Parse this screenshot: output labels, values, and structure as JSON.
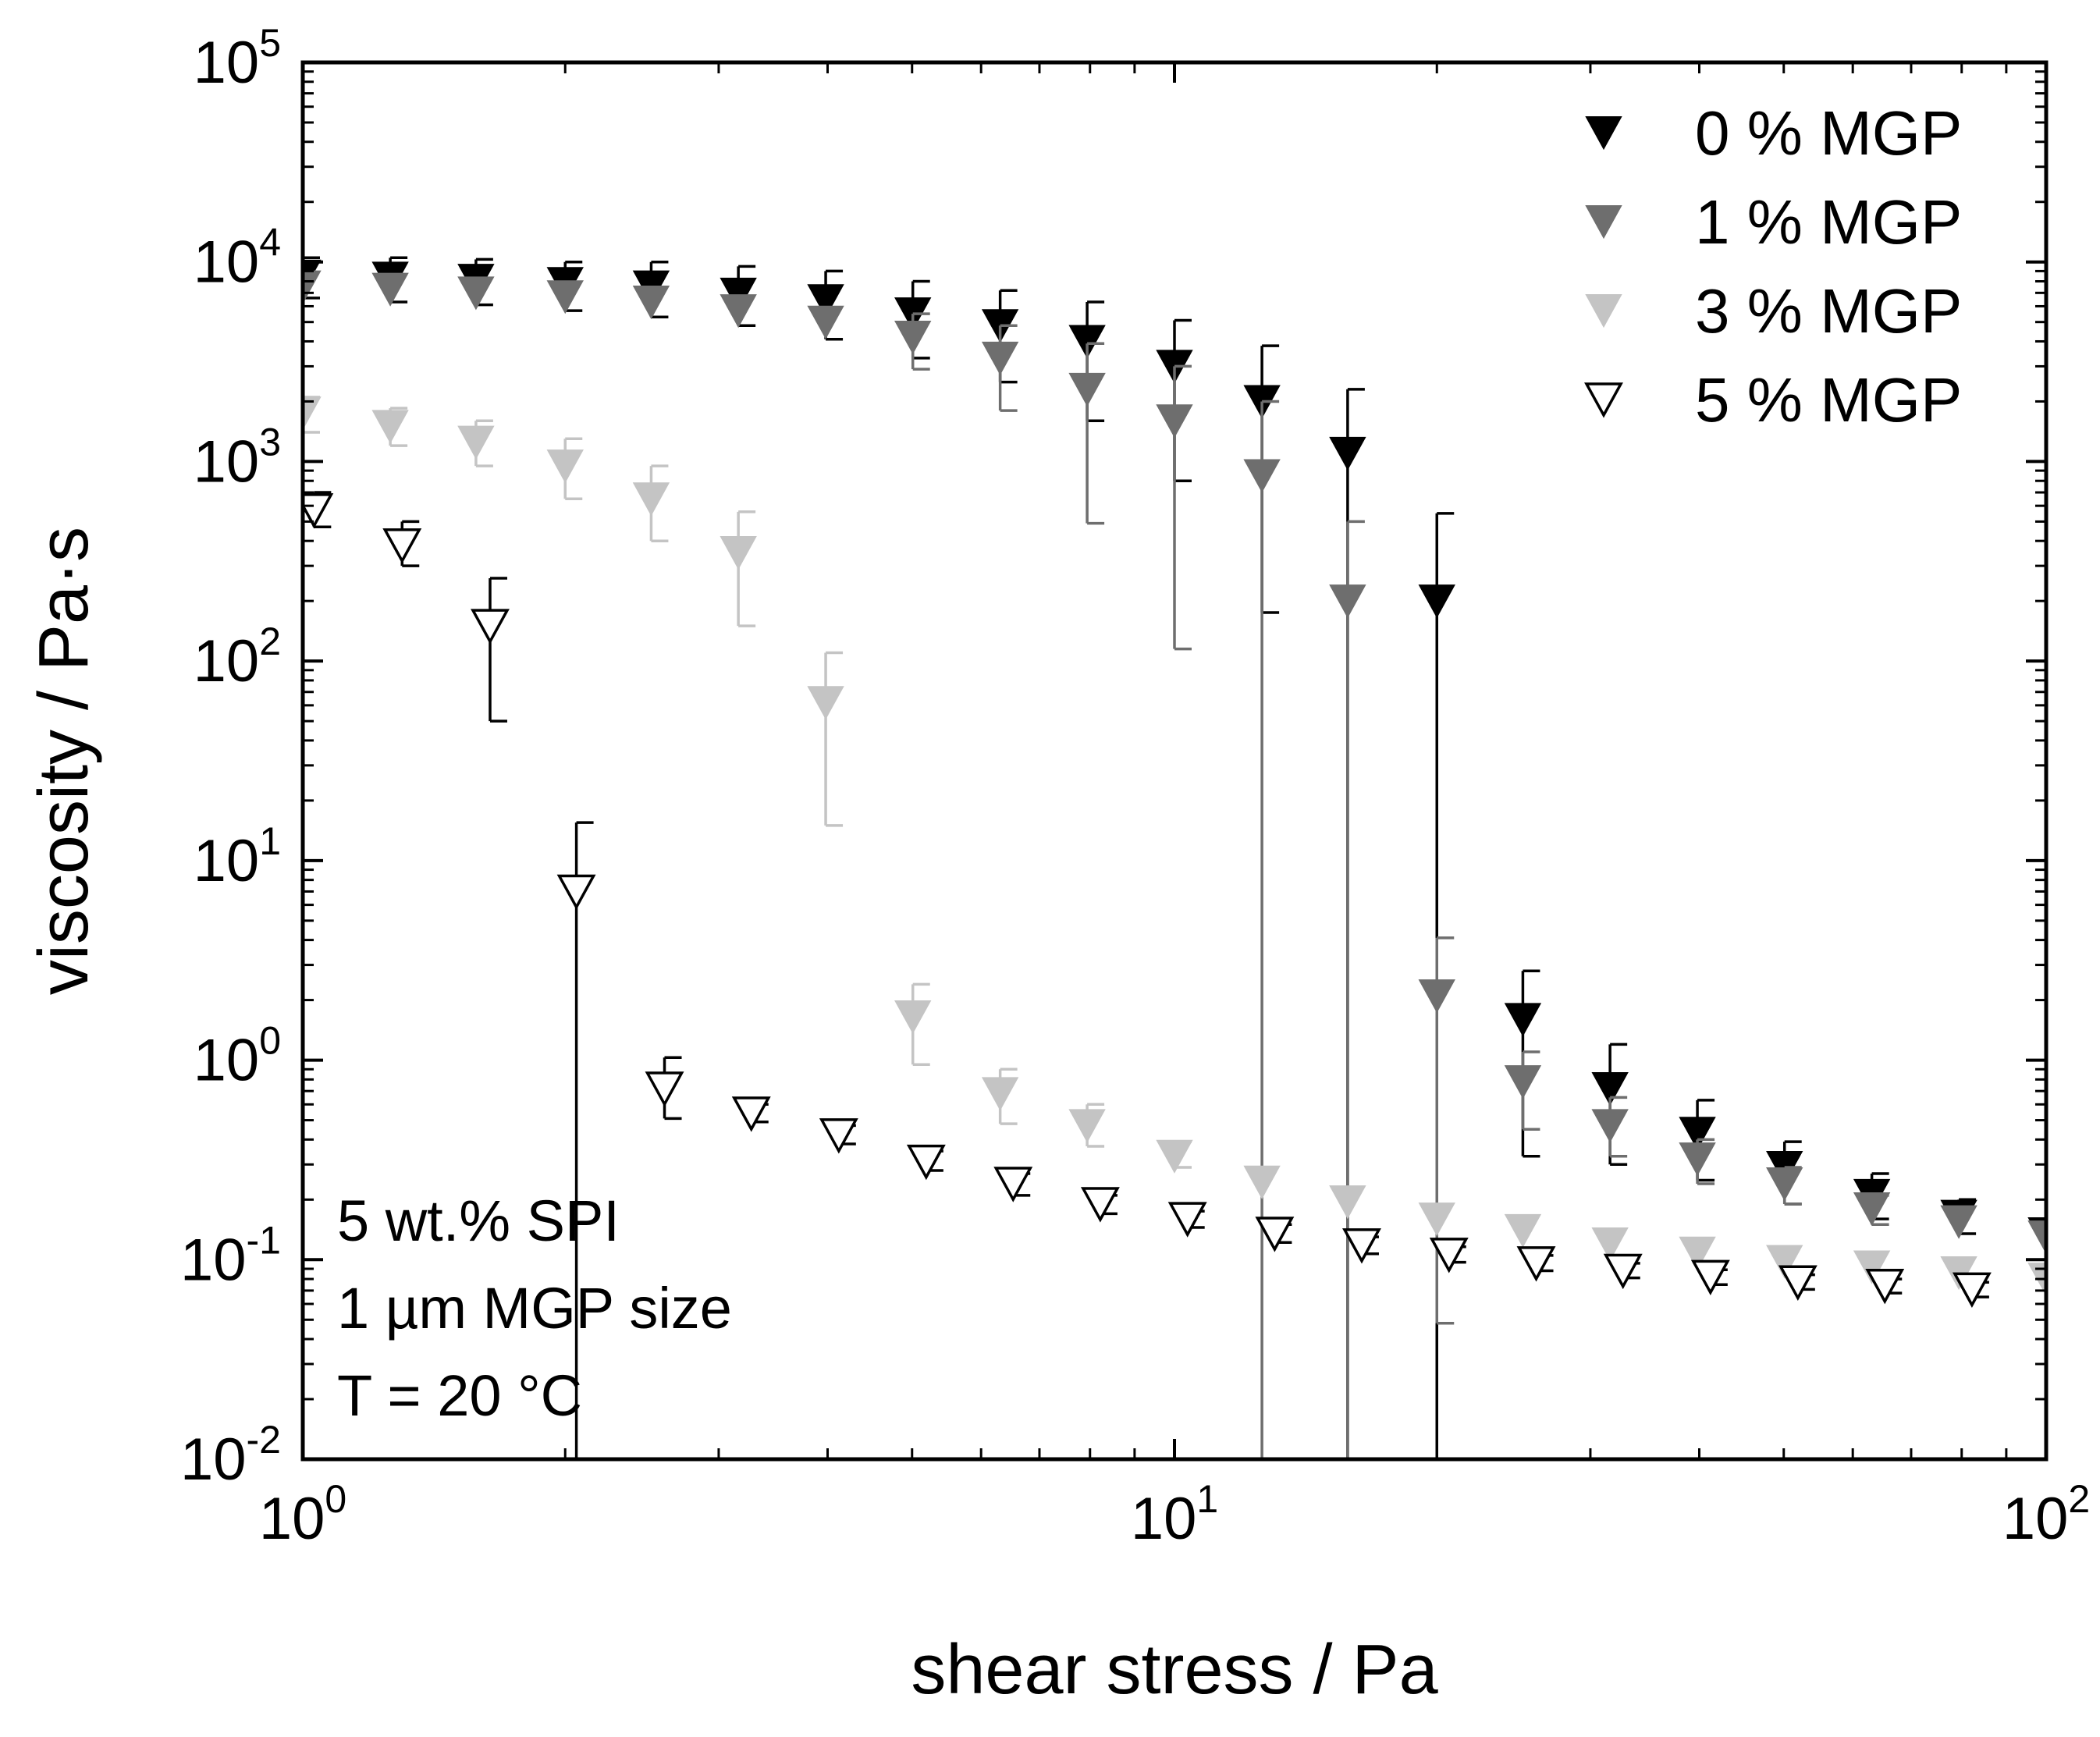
{
  "chart_data": {
    "type": "scatter",
    "xlabel": "shear stress / Pa",
    "ylabel": "viscosity / Pa·s",
    "x_scale": "log",
    "y_scale": "log",
    "xlim": [
      1,
      100
    ],
    "ylim": [
      0.01,
      100000
    ],
    "x_ticks": [
      {
        "value": 1,
        "base": "10",
        "exp": "0"
      },
      {
        "value": 10,
        "base": "10",
        "exp": "1"
      },
      {
        "value": 100,
        "base": "10",
        "exp": "2"
      }
    ],
    "y_ticks": [
      {
        "value": 0.01,
        "base": "10",
        "exp": "-2"
      },
      {
        "value": 0.1,
        "base": "10",
        "exp": "-1"
      },
      {
        "value": 1,
        "base": "10",
        "exp": "0"
      },
      {
        "value": 10,
        "base": "10",
        "exp": "1"
      },
      {
        "value": 100,
        "base": "10",
        "exp": "2"
      },
      {
        "value": 1000,
        "base": "10",
        "exp": "3"
      },
      {
        "value": 10000,
        "base": "10",
        "exp": "4"
      },
      {
        "value": 100000,
        "base": "10",
        "exp": "5"
      }
    ],
    "grid": false,
    "legend_position": "top-right",
    "annotations": [
      "5 wt.% SPI",
      "1 µm MGP size",
      "T = 20 °C"
    ],
    "series": [
      {
        "name": "0 % MGP",
        "color": "#000000",
        "filled": true,
        "points": [
          {
            "x": 1.0,
            "y": 8500,
            "err_up": 10500,
            "err_lo": 6600
          },
          {
            "x": 1.26,
            "y": 8300,
            "err_up": 10500,
            "err_lo": 6300
          },
          {
            "x": 1.58,
            "y": 8100,
            "err_up": 10300,
            "err_lo": 6100
          },
          {
            "x": 2.0,
            "y": 7800,
            "err_up": 10000,
            "err_lo": 5700
          },
          {
            "x": 2.51,
            "y": 7500,
            "err_up": 10000,
            "err_lo": 5300
          },
          {
            "x": 3.16,
            "y": 6900,
            "err_up": 9500,
            "err_lo": 4800
          },
          {
            "x": 3.98,
            "y": 6400,
            "err_up": 9000,
            "err_lo": 4100
          },
          {
            "x": 5.01,
            "y": 5500,
            "err_up": 8000,
            "err_lo": 3300
          },
          {
            "x": 6.31,
            "y": 4800,
            "err_up": 7200,
            "err_lo": 2500
          },
          {
            "x": 7.94,
            "y": 4000,
            "err_up": 6300,
            "err_lo": 1600
          },
          {
            "x": 10.0,
            "y": 3000,
            "err_up": 5100,
            "err_lo": 800
          },
          {
            "x": 12.6,
            "y": 2000,
            "err_up": 3800,
            "err_lo": 175
          },
          {
            "x": 15.8,
            "y": 1100,
            "err_up": 2300,
            "err_lo": 0.01
          },
          {
            "x": 20.0,
            "y": 200,
            "err_up": 550,
            "err_lo": 0.01
          },
          {
            "x": 25.1,
            "y": 1.6,
            "err_up": 2.8,
            "err_lo": 0.33
          },
          {
            "x": 31.6,
            "y": 0.72,
            "err_up": 1.2,
            "err_lo": 0.3
          },
          {
            "x": 39.8,
            "y": 0.43,
            "err_up": 0.63,
            "err_lo": 0.25
          },
          {
            "x": 50.1,
            "y": 0.29,
            "err_up": 0.39,
            "err_lo": 0.19
          },
          {
            "x": 63.1,
            "y": 0.21,
            "err_up": 0.27,
            "err_lo": 0.16
          },
          {
            "x": 79.4,
            "y": 0.165,
            "err_up": 0.2,
            "err_lo": 0.135
          },
          {
            "x": 100.0,
            "y": 0.135,
            "err_up": 0.16,
            "err_lo": 0.115
          }
        ]
      },
      {
        "name": "1 % MGP",
        "color": "#6e6e6e",
        "filled": true,
        "points": [
          {
            "x": 1.0,
            "y": 7500
          },
          {
            "x": 1.26,
            "y": 7300
          },
          {
            "x": 1.58,
            "y": 7000
          },
          {
            "x": 2.0,
            "y": 6700
          },
          {
            "x": 2.51,
            "y": 6300
          },
          {
            "x": 3.16,
            "y": 5700
          },
          {
            "x": 3.98,
            "y": 5000
          },
          {
            "x": 5.01,
            "y": 4200,
            "err_up": 5500,
            "err_lo": 2900
          },
          {
            "x": 6.31,
            "y": 3300,
            "err_up": 4800,
            "err_lo": 1800
          },
          {
            "x": 7.94,
            "y": 2300,
            "err_up": 3900,
            "err_lo": 490
          },
          {
            "x": 10.0,
            "y": 1600,
            "err_up": 3000,
            "err_lo": 115
          },
          {
            "x": 12.6,
            "y": 850,
            "err_up": 2000,
            "err_lo": 0.01
          },
          {
            "x": 15.8,
            "y": 200,
            "err_up": 500,
            "err_lo": 0.01
          },
          {
            "x": 20.0,
            "y": 2.1,
            "err_up": 4.1,
            "err_lo": 0.048
          },
          {
            "x": 25.1,
            "y": 0.78,
            "err_up": 1.1,
            "err_lo": 0.45
          },
          {
            "x": 31.6,
            "y": 0.47,
            "err_up": 0.65,
            "err_lo": 0.33
          },
          {
            "x": 39.8,
            "y": 0.32,
            "err_up": 0.4,
            "err_lo": 0.24
          },
          {
            "x": 50.1,
            "y": 0.24,
            "err_up": 0.29,
            "err_lo": 0.19
          },
          {
            "x": 63.1,
            "y": 0.18,
            "err_up": 0.21,
            "err_lo": 0.15
          },
          {
            "x": 79.4,
            "y": 0.155
          },
          {
            "x": 100.0,
            "y": 0.13
          }
        ]
      },
      {
        "name": "3 % MGP",
        "color": "#c4c4c4",
        "filled": true,
        "points": [
          {
            "x": 1.0,
            "y": 1750,
            "err_up": 2100,
            "err_lo": 1400
          },
          {
            "x": 1.26,
            "y": 1500,
            "err_up": 1850,
            "err_lo": 1200
          },
          {
            "x": 1.58,
            "y": 1250,
            "err_up": 1600,
            "err_lo": 950
          },
          {
            "x": 2.0,
            "y": 950,
            "err_up": 1300,
            "err_lo": 650
          },
          {
            "x": 2.51,
            "y": 650,
            "err_up": 950,
            "err_lo": 400
          },
          {
            "x": 3.16,
            "y": 350,
            "err_up": 560,
            "err_lo": 150
          },
          {
            "x": 3.98,
            "y": 62,
            "err_up": 110,
            "err_lo": 15
          },
          {
            "x": 5.01,
            "y": 1.65,
            "err_up": 2.4,
            "err_lo": 0.95
          },
          {
            "x": 6.31,
            "y": 0.68,
            "err_up": 0.9,
            "err_lo": 0.48
          },
          {
            "x": 7.94,
            "y": 0.47,
            "err_up": 0.6,
            "err_lo": 0.37
          },
          {
            "x": 10.0,
            "y": 0.33,
            "err_up": 0.39,
            "err_lo": 0.29
          },
          {
            "x": 12.6,
            "y": 0.245
          },
          {
            "x": 15.8,
            "y": 0.195
          },
          {
            "x": 20.0,
            "y": 0.16
          },
          {
            "x": 25.1,
            "y": 0.14
          },
          {
            "x": 31.6,
            "y": 0.12
          },
          {
            "x": 39.8,
            "y": 0.108
          },
          {
            "x": 50.1,
            "y": 0.098
          },
          {
            "x": 63.1,
            "y": 0.092
          },
          {
            "x": 79.4,
            "y": 0.086
          },
          {
            "x": 100.0,
            "y": 0.08
          }
        ]
      },
      {
        "name": "5 % MGP",
        "color": "#000000",
        "filled": false,
        "points": [
          {
            "x": 1.03,
            "y": 570,
            "err_up": 700,
            "err_lo": 470
          },
          {
            "x": 1.3,
            "y": 380,
            "err_up": 500,
            "err_lo": 300
          },
          {
            "x": 1.64,
            "y": 150,
            "err_up": 260,
            "err_lo": 50
          },
          {
            "x": 2.06,
            "y": 7,
            "err_up": 15.5,
            "err_lo": 0.01
          },
          {
            "x": 2.6,
            "y": 0.72,
            "err_up": 1.03,
            "err_lo": 0.51
          },
          {
            "x": 3.27,
            "y": 0.54,
            "err_up": 0.6,
            "err_lo": 0.49
          },
          {
            "x": 4.12,
            "y": 0.42,
            "err_up": 0.47,
            "err_lo": 0.38
          },
          {
            "x": 5.19,
            "y": 0.31,
            "err_up": 0.35,
            "err_lo": 0.28
          },
          {
            "x": 6.53,
            "y": 0.24,
            "err_up": 0.27,
            "err_lo": 0.21
          },
          {
            "x": 8.22,
            "y": 0.19,
            "err_up": 0.21,
            "err_lo": 0.17
          },
          {
            "x": 10.35,
            "y": 0.16,
            "err_up": 0.175,
            "err_lo": 0.145
          },
          {
            "x": 13.03,
            "y": 0.135,
            "err_up": 0.15,
            "err_lo": 0.122
          },
          {
            "x": 16.4,
            "y": 0.118,
            "err_up": 0.13,
            "err_lo": 0.107
          },
          {
            "x": 20.65,
            "y": 0.106,
            "err_up": 0.116,
            "err_lo": 0.097
          },
          {
            "x": 26.0,
            "y": 0.096,
            "err_up": 0.105,
            "err_lo": 0.088
          },
          {
            "x": 32.7,
            "y": 0.088,
            "err_up": 0.096,
            "err_lo": 0.081
          },
          {
            "x": 41.2,
            "y": 0.082,
            "err_up": 0.089,
            "err_lo": 0.075
          },
          {
            "x": 51.9,
            "y": 0.077,
            "err_up": 0.084,
            "err_lo": 0.071
          },
          {
            "x": 65.3,
            "y": 0.074,
            "err_up": 0.08,
            "err_lo": 0.068
          },
          {
            "x": 82.2,
            "y": 0.071,
            "err_up": 0.077,
            "err_lo": 0.065
          }
        ]
      }
    ]
  }
}
